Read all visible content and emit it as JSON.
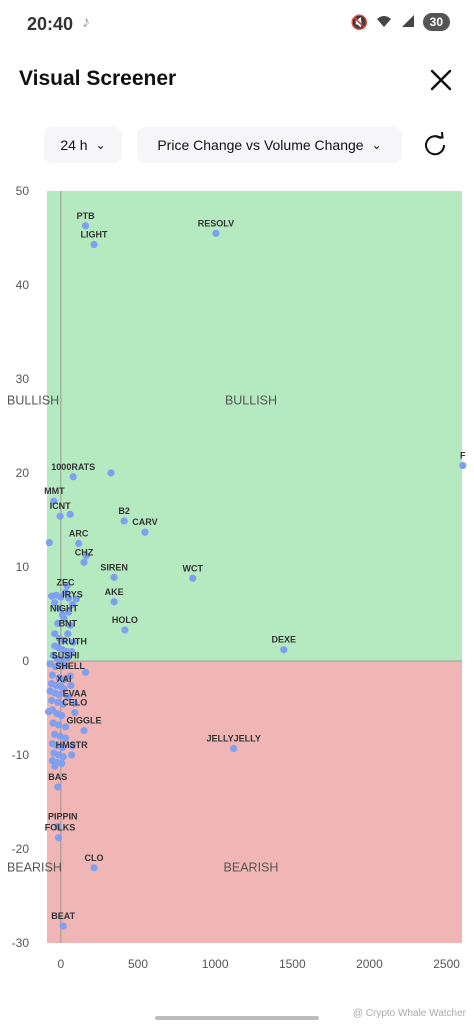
{
  "status_bar": {
    "time": "20:40",
    "battery": "30"
  },
  "header": {
    "title": "Visual Screener"
  },
  "controls": {
    "timeframe": "24 h",
    "metric": "Price Change vs Volume Change"
  },
  "watermark": "@ Crypto Whale Watcher",
  "colors": {
    "bullish": "#b5eac1",
    "bearish": "#f0b5b5",
    "point": "#7f9ff0"
  },
  "chart_data": {
    "type": "scatter",
    "xlim": [
      -90,
      2600
    ],
    "ylim": [
      -30,
      50
    ],
    "xticks": [
      0,
      500,
      1000,
      1500,
      2000,
      2500
    ],
    "yticks": [
      -30,
      -20,
      -10,
      0,
      10,
      20,
      30,
      40,
      50
    ],
    "zone_labels": {
      "bullish": "BULLISH",
      "bearish": "BEARISH"
    },
    "labeled_points": [
      {
        "label": "PTB",
        "x": 160,
        "y": 46.3
      },
      {
        "label": "RESOLV",
        "x": 1005,
        "y": 45.5
      },
      {
        "label": "LIGHT",
        "x": 215,
        "y": 44.3
      },
      {
        "label": "F",
        "x": 2605,
        "y": 20.8
      },
      {
        "label": "1000RATS",
        "x": 80,
        "y": 19.6
      },
      {
        "label": "MMT",
        "x": -45,
        "y": 17.0
      },
      {
        "label": "ICNT",
        "x": -5,
        "y": 15.4
      },
      {
        "label": "B2",
        "x": 410,
        "y": 14.9
      },
      {
        "label": "CARV",
        "x": 545,
        "y": 13.7
      },
      {
        "label": "ARC",
        "x": 115,
        "y": 12.5
      },
      {
        "label": "CHZ",
        "x": 150,
        "y": 10.5
      },
      {
        "label": "SIREN",
        "x": 345,
        "y": 8.9
      },
      {
        "label": "WCT",
        "x": 855,
        "y": 8.8
      },
      {
        "label": "ZEC",
        "x": 30,
        "y": 7.3
      },
      {
        "label": "IRYS",
        "x": 75,
        "y": 6.0
      },
      {
        "label": "AKE",
        "x": 345,
        "y": 6.3
      },
      {
        "label": "NIGHT",
        "x": 20,
        "y": 4.5
      },
      {
        "label": "HOLO",
        "x": 415,
        "y": 3.3
      },
      {
        "label": "BNT",
        "x": 45,
        "y": 2.9
      },
      {
        "label": "DEXE",
        "x": 1445,
        "y": 1.2
      },
      {
        "label": "TRUTH",
        "x": 70,
        "y": 1.0
      },
      {
        "label": "SUSHI",
        "x": 30,
        "y": -0.5
      },
      {
        "label": "SHELL",
        "x": 60,
        "y": -1.6
      },
      {
        "label": "XAI",
        "x": 20,
        "y": -3.0
      },
      {
        "label": "EVAA",
        "x": 90,
        "y": -4.5
      },
      {
        "label": "CELO",
        "x": 90,
        "y": -5.5
      },
      {
        "label": "GIGGLE",
        "x": 150,
        "y": -7.4
      },
      {
        "label": "JELLYJELLY",
        "x": 1120,
        "y": -9.3
      },
      {
        "label": "HMSTR",
        "x": 70,
        "y": -10.0
      },
      {
        "label": "BAS",
        "x": -20,
        "y": -13.4
      },
      {
        "label": "PIPPIN",
        "x": -20,
        "y": -17.6
      },
      {
        "label": "FOLKS",
        "x": -15,
        "y": -18.8
      },
      {
        "label": "CLO",
        "x": 215,
        "y": -22.0
      },
      {
        "label": "BEAT",
        "x": 15,
        "y": -28.2
      }
    ],
    "unlabeled_points": [
      [
        325,
        20.0
      ],
      [
        -75,
        12.6
      ],
      [
        60,
        15.6
      ],
      [
        165,
        11.2
      ],
      [
        40,
        8.0
      ],
      [
        -60,
        6.9
      ],
      [
        -30,
        7.0
      ],
      [
        0,
        6.8
      ],
      [
        50,
        6.7
      ],
      [
        100,
        6.6
      ],
      [
        -40,
        6.2
      ],
      [
        -10,
        5.6
      ],
      [
        50,
        5.2
      ],
      [
        10,
        4.9
      ],
      [
        -20,
        4.0
      ],
      [
        60,
        3.8
      ],
      [
        -40,
        2.9
      ],
      [
        -10,
        2.4
      ],
      [
        20,
        2.2
      ],
      [
        80,
        2.0
      ],
      [
        -40,
        1.6
      ],
      [
        -15,
        1.4
      ],
      [
        10,
        1.2
      ],
      [
        40,
        1.0
      ],
      [
        -50,
        0.6
      ],
      [
        -20,
        0.2
      ],
      [
        5,
        0.1
      ],
      [
        45,
        0.4
      ],
      [
        -70,
        -0.3
      ],
      [
        -35,
        -0.6
      ],
      [
        0,
        -0.6
      ],
      [
        160,
        -1.2
      ],
      [
        -55,
        -1.5
      ],
      [
        -10,
        -1.8
      ],
      [
        20,
        -2.0
      ],
      [
        -60,
        -2.4
      ],
      [
        -30,
        -2.6
      ],
      [
        0,
        -2.7
      ],
      [
        65,
        -2.6
      ],
      [
        -70,
        -3.2
      ],
      [
        -40,
        -3.4
      ],
      [
        -10,
        -3.6
      ],
      [
        45,
        -3.8
      ],
      [
        -60,
        -4.2
      ],
      [
        -20,
        -4.4
      ],
      [
        15,
        -4.6
      ],
      [
        -80,
        -5.4
      ],
      [
        -55,
        -5.2
      ],
      [
        -25,
        -5.6
      ],
      [
        5,
        -5.8
      ],
      [
        -50,
        -6.6
      ],
      [
        -15,
        -6.8
      ],
      [
        30,
        -7.0
      ],
      [
        -40,
        -7.8
      ],
      [
        -5,
        -8.0
      ],
      [
        30,
        -8.2
      ],
      [
        -55,
        -8.8
      ],
      [
        -25,
        -9.0
      ],
      [
        10,
        -9.2
      ],
      [
        75,
        -9.0
      ],
      [
        -45,
        -9.8
      ],
      [
        -15,
        -10.0
      ],
      [
        15,
        -10.2
      ],
      [
        -55,
        -10.6
      ],
      [
        -25,
        -10.8
      ],
      [
        5,
        -10.9
      ],
      [
        -40,
        -11.2
      ]
    ]
  }
}
